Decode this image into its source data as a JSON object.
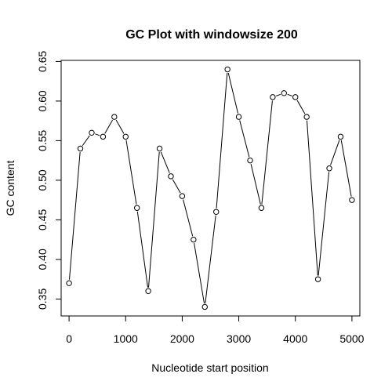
{
  "chart_data": {
    "type": "line",
    "title": "GC Plot with windowsize  200",
    "xlabel": "Nucleotide start position",
    "ylabel": "GC content",
    "xlim": [
      -140,
      5140
    ],
    "ylim": [
      0.3286,
      0.6514
    ],
    "xticks": [
      "0",
      "1000",
      "2000",
      "3000",
      "4000",
      "5000"
    ],
    "yticks": [
      "0.35",
      "0.40",
      "0.45",
      "0.50",
      "0.55",
      "0.60",
      "0.65"
    ],
    "grid": false,
    "x": [
      0,
      200,
      400,
      600,
      800,
      1000,
      1200,
      1400,
      1600,
      1800,
      2000,
      2200,
      2400,
      2600,
      2800,
      3000,
      3200,
      3400,
      3600,
      3800,
      4000,
      4200,
      4400,
      4600,
      4800,
      5000
    ],
    "y": [
      0.37,
      0.54,
      0.56,
      0.555,
      0.58,
      0.555,
      0.465,
      0.36,
      0.54,
      0.505,
      0.48,
      0.425,
      0.34,
      0.46,
      0.64,
      0.58,
      0.525,
      0.465,
      0.605,
      0.61,
      0.605,
      0.58,
      0.375,
      0.515,
      0.555,
      0.475
    ]
  }
}
